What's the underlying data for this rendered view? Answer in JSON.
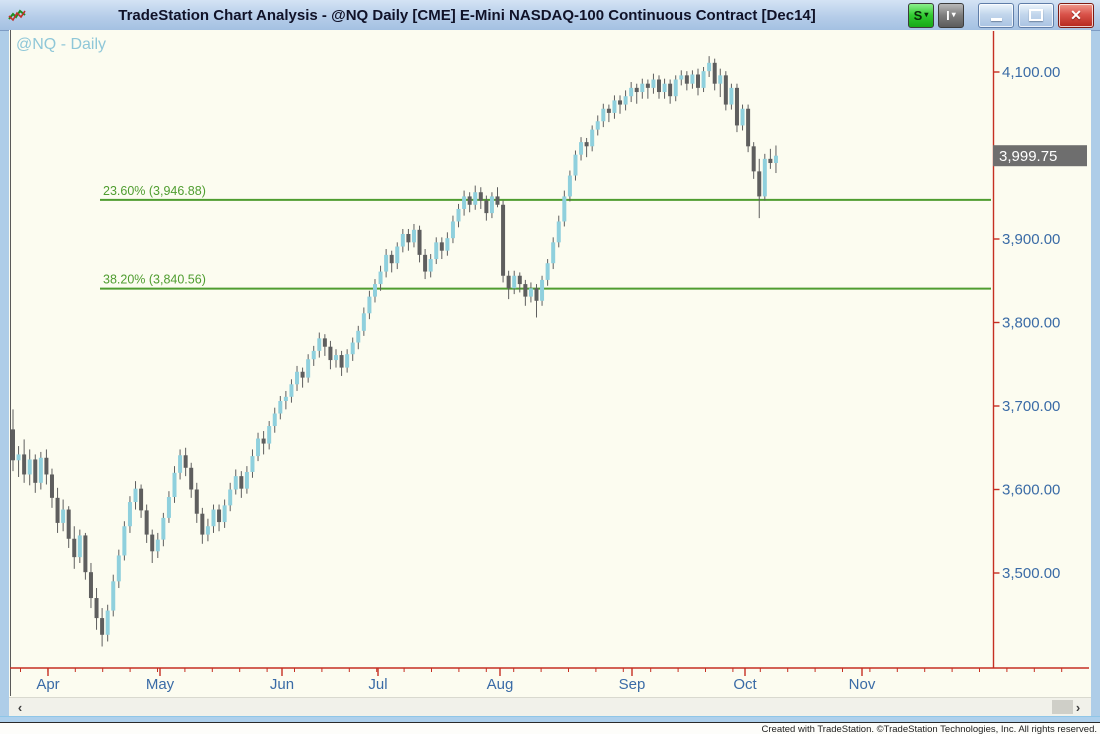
{
  "window": {
    "title": "TradeStation Chart Analysis - @NQ Daily [CME] E-Mini NASDAQ-100 Continuous Contract [Dec14]",
    "buttons": {
      "style_label": "S",
      "indicator_label": "I",
      "dropdown_glyph": "▾",
      "close_glyph": "✕"
    },
    "icons": [
      "app-chart-icon",
      "minimize-icon",
      "maximize-icon",
      "close-icon"
    ]
  },
  "chart": {
    "symbol_label": "@NQ - Daily",
    "last_price_label": "3,999.75"
  },
  "chart_data": {
    "type": "candlestick",
    "symbol": "@NQ",
    "interval": "Daily",
    "title": "@NQ Daily [CME] E-Mini NASDAQ-100 Continuous Contract [Dec14]",
    "last_price": 3999.75,
    "ylim": [
      3400,
      4140
    ],
    "grid": false,
    "y_ticks": [
      {
        "value": 4100,
        "label": "4,100.00"
      },
      {
        "value": 3900,
        "label": "3,900.00"
      },
      {
        "value": 3800,
        "label": "3,800.00"
      },
      {
        "value": 3700,
        "label": "3,700.00"
      },
      {
        "value": 3600,
        "label": "3,600.00"
      },
      {
        "value": 3500,
        "label": "3,500.00"
      }
    ],
    "x_ticks": [
      "Apr",
      "May",
      "Jun",
      "Jul",
      "Aug",
      "Sep",
      "Oct",
      "Nov"
    ],
    "fib_levels": [
      {
        "label": "23.60% (3,946.88)",
        "value": 3946.88
      },
      {
        "label": "38.20% (3,840.56)",
        "value": 3840.56
      }
    ],
    "colors": {
      "up": "#8fd0dd",
      "down": "#5e5e5e",
      "wick": "#5e5e5e",
      "fib_line": "#4f9d30",
      "axis": "#c52f22",
      "tick_label": "#3a6ba6",
      "badge_bg": "#6e6e6e",
      "badge_text": "#ffffff",
      "background": "#fcfcf0"
    },
    "candles_format": [
      "open",
      "high",
      "low",
      "close"
    ],
    "candles": [
      [
        3672,
        3696,
        3622,
        3635
      ],
      [
        3635,
        3652,
        3615,
        3642
      ],
      [
        3642,
        3660,
        3608,
        3618
      ],
      [
        3618,
        3648,
        3605,
        3636
      ],
      [
        3636,
        3642,
        3596,
        3608
      ],
      [
        3608,
        3645,
        3600,
        3638
      ],
      [
        3638,
        3648,
        3606,
        3618
      ],
      [
        3618,
        3625,
        3578,
        3590
      ],
      [
        3590,
        3602,
        3548,
        3560
      ],
      [
        3560,
        3588,
        3550,
        3576
      ],
      [
        3576,
        3580,
        3530,
        3541
      ],
      [
        3541,
        3556,
        3505,
        3519
      ],
      [
        3519,
        3552,
        3512,
        3545
      ],
      [
        3545,
        3548,
        3492,
        3501
      ],
      [
        3501,
        3512,
        3458,
        3470
      ],
      [
        3470,
        3482,
        3432,
        3446
      ],
      [
        3446,
        3458,
        3412,
        3426
      ],
      [
        3426,
        3462,
        3418,
        3455
      ],
      [
        3455,
        3498,
        3448,
        3490
      ],
      [
        3490,
        3528,
        3482,
        3521
      ],
      [
        3521,
        3562,
        3515,
        3556
      ],
      [
        3556,
        3592,
        3548,
        3585
      ],
      [
        3585,
        3610,
        3576,
        3601
      ],
      [
        3601,
        3606,
        3566,
        3575
      ],
      [
        3575,
        3582,
        3536,
        3546
      ],
      [
        3546,
        3552,
        3512,
        3526
      ],
      [
        3526,
        3548,
        3518,
        3540
      ],
      [
        3540,
        3572,
        3532,
        3566
      ],
      [
        3566,
        3598,
        3560,
        3591
      ],
      [
        3591,
        3628,
        3584,
        3620
      ],
      [
        3620,
        3648,
        3612,
        3641
      ],
      [
        3641,
        3650,
        3616,
        3626
      ],
      [
        3626,
        3632,
        3590,
        3600
      ],
      [
        3600,
        3608,
        3560,
        3571
      ],
      [
        3571,
        3578,
        3535,
        3546
      ],
      [
        3546,
        3565,
        3538,
        3556
      ],
      [
        3556,
        3582,
        3548,
        3576
      ],
      [
        3576,
        3582,
        3550,
        3561
      ],
      [
        3561,
        3588,
        3554,
        3581
      ],
      [
        3581,
        3608,
        3574,
        3600
      ],
      [
        3600,
        3624,
        3594,
        3616
      ],
      [
        3616,
        3622,
        3590,
        3601
      ],
      [
        3601,
        3628,
        3595,
        3621
      ],
      [
        3621,
        3648,
        3614,
        3640
      ],
      [
        3640,
        3668,
        3634,
        3661
      ],
      [
        3661,
        3670,
        3642,
        3655
      ],
      [
        3655,
        3682,
        3648,
        3676
      ],
      [
        3676,
        3698,
        3668,
        3691
      ],
      [
        3691,
        3712,
        3684,
        3706
      ],
      [
        3706,
        3718,
        3696,
        3711
      ],
      [
        3711,
        3732,
        3704,
        3726
      ],
      [
        3726,
        3748,
        3718,
        3741
      ],
      [
        3741,
        3746,
        3722,
        3734
      ],
      [
        3734,
        3762,
        3728,
        3756
      ],
      [
        3756,
        3772,
        3748,
        3766
      ],
      [
        3766,
        3788,
        3758,
        3781
      ],
      [
        3781,
        3786,
        3760,
        3771
      ],
      [
        3771,
        3778,
        3744,
        3755
      ],
      [
        3755,
        3768,
        3746,
        3761
      ],
      [
        3761,
        3766,
        3736,
        3746
      ],
      [
        3746,
        3768,
        3740,
        3762
      ],
      [
        3762,
        3782,
        3754,
        3776
      ],
      [
        3776,
        3796,
        3768,
        3790
      ],
      [
        3790,
        3818,
        3784,
        3811
      ],
      [
        3811,
        3838,
        3804,
        3831
      ],
      [
        3831,
        3852,
        3824,
        3846
      ],
      [
        3846,
        3868,
        3838,
        3861
      ],
      [
        3861,
        3888,
        3854,
        3881
      ],
      [
        3881,
        3886,
        3860,
        3871
      ],
      [
        3871,
        3896,
        3864,
        3891
      ],
      [
        3891,
        3912,
        3884,
        3906
      ],
      [
        3906,
        3912,
        3886,
        3896
      ],
      [
        3896,
        3918,
        3890,
        3911
      ],
      [
        3911,
        3916,
        3872,
        3881
      ],
      [
        3881,
        3888,
        3852,
        3861
      ],
      [
        3861,
        3882,
        3854,
        3876
      ],
      [
        3876,
        3902,
        3870,
        3896
      ],
      [
        3896,
        3902,
        3876,
        3886
      ],
      [
        3886,
        3908,
        3880,
        3901
      ],
      [
        3901,
        3928,
        3895,
        3921
      ],
      [
        3921,
        3942,
        3914,
        3936
      ],
      [
        3936,
        3958,
        3928,
        3951
      ],
      [
        3951,
        3956,
        3932,
        3941
      ],
      [
        3941,
        3964,
        3935,
        3956
      ],
      [
        3956,
        3962,
        3936,
        3946
      ],
      [
        3946,
        3952,
        3922,
        3931
      ],
      [
        3931,
        3956,
        3925,
        3951
      ],
      [
        3951,
        3962,
        3938,
        3941
      ],
      [
        3941,
        3946,
        3848,
        3856
      ],
      [
        3856,
        3862,
        3828,
        3841
      ],
      [
        3841,
        3862,
        3834,
        3856
      ],
      [
        3856,
        3860,
        3836,
        3846
      ],
      [
        3846,
        3851,
        3820,
        3831
      ],
      [
        3831,
        3848,
        3824,
        3841
      ],
      [
        3841,
        3846,
        3806,
        3826
      ],
      [
        3826,
        3856,
        3820,
        3851
      ],
      [
        3851,
        3876,
        3844,
        3871
      ],
      [
        3871,
        3902,
        3864,
        3896
      ],
      [
        3896,
        3928,
        3890,
        3921
      ],
      [
        3921,
        3958,
        3915,
        3951
      ],
      [
        3951,
        3982,
        3945,
        3976
      ],
      [
        3976,
        4006,
        3970,
        4001
      ],
      [
        4001,
        4022,
        3994,
        4016
      ],
      [
        4016,
        4021,
        3998,
        4011
      ],
      [
        4011,
        4036,
        4005,
        4031
      ],
      [
        4031,
        4048,
        4024,
        4041
      ],
      [
        4041,
        4062,
        4034,
        4056
      ],
      [
        4056,
        4061,
        4040,
        4051
      ],
      [
        4051,
        4072,
        4044,
        4066
      ],
      [
        4066,
        4072,
        4050,
        4061
      ],
      [
        4061,
        4078,
        4054,
        4071
      ],
      [
        4071,
        4088,
        4064,
        4081
      ],
      [
        4081,
        4086,
        4062,
        4076
      ],
      [
        4076,
        4092,
        4068,
        4086
      ],
      [
        4086,
        4091,
        4068,
        4081
      ],
      [
        4081,
        4098,
        4074,
        4091
      ],
      [
        4091,
        4096,
        4068,
        4076
      ],
      [
        4076,
        4092,
        4068,
        4086
      ],
      [
        4086,
        4091,
        4062,
        4071
      ],
      [
        4071,
        4096,
        4065,
        4091
      ],
      [
        4091,
        4102,
        4084,
        4096
      ],
      [
        4096,
        4101,
        4078,
        4086
      ],
      [
        4086,
        4102,
        4080,
        4097
      ],
      [
        4097,
        4104,
        4072,
        4081
      ],
      [
        4081,
        4106,
        4076,
        4101
      ],
      [
        4101,
        4119,
        4094,
        4111
      ],
      [
        4111,
        4116,
        4078,
        4086
      ],
      [
        4086,
        4104,
        4070,
        4096
      ],
      [
        4096,
        4101,
        4054,
        4061
      ],
      [
        4061,
        4086,
        4055,
        4081
      ],
      [
        4081,
        4086,
        4028,
        4036
      ],
      [
        4036,
        4061,
        4030,
        4056
      ],
      [
        4056,
        4061,
        4004,
        4011
      ],
      [
        4011,
        4016,
        3972,
        3981
      ],
      [
        3981,
        3996,
        3925,
        3951
      ],
      [
        3951,
        4002,
        3946,
        3996
      ],
      [
        3996,
        4008,
        3984,
        3991
      ],
      [
        3991,
        4012,
        3979,
        3999.75
      ]
    ]
  },
  "scrollbar": {
    "left_arrow": "‹",
    "right_arrow": "›"
  },
  "statusbar": {
    "text": "Created with TradeStation. ©TradeStation Technologies, Inc. All rights reserved."
  }
}
